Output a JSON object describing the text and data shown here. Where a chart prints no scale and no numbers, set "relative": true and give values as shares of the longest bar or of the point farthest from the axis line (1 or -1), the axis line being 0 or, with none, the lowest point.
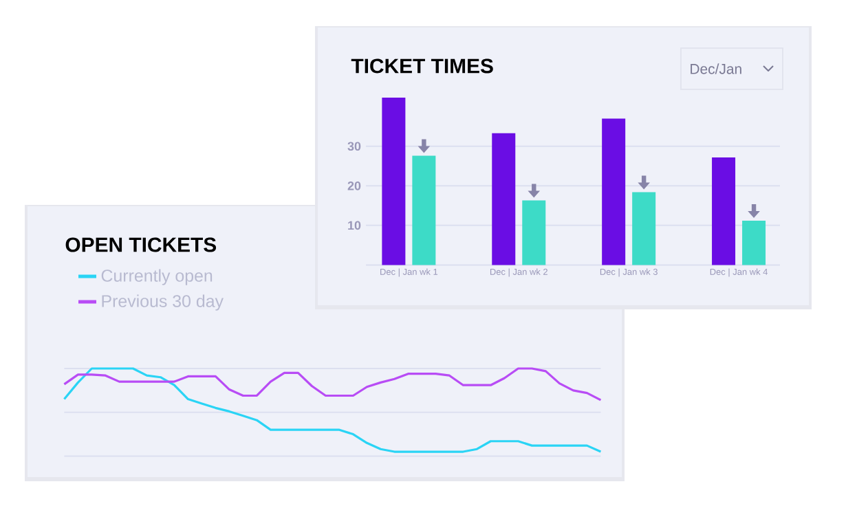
{
  "chart_data": [
    {
      "type": "bar",
      "title": "TICKET TIMES",
      "annotations": [
        "Dec/Jan"
      ],
      "categories": [
        "Dec | Jan wk 1",
        "Dec | Jan wk 2",
        "Dec | Jan wk 3",
        "Dec | Jan wk 4"
      ],
      "series": [
        {
          "color": "#6a0de4",
          "values": [
            42.3,
            33.3,
            37,
            27.2
          ]
        },
        {
          "color": "#3ddbc7",
          "values": [
            27.6,
            16.3,
            18.4,
            11.2
          ]
        }
      ],
      "ylim": [
        0,
        42.3
      ],
      "yticks": [
        10,
        20,
        30
      ],
      "grid": "y"
    },
    {
      "type": "line",
      "title": "OPEN TICKETS",
      "relative": true,
      "legend": "top left",
      "ref_lines": [
        {
          "axis": "y",
          "value": 0.5,
          "color": "#dcdff0"
        },
        {
          "axis": "y",
          "value": 1,
          "color": "#dcdff0"
        }
      ],
      "categories": [
        null,
        null,
        null,
        null,
        null,
        null,
        null,
        null,
        null,
        null,
        null,
        null,
        null,
        null,
        null,
        null,
        null,
        null,
        null,
        null,
        null,
        null,
        null,
        null,
        null,
        null,
        null,
        null,
        null,
        null,
        null,
        null,
        null,
        null,
        null,
        null,
        null,
        null,
        null,
        null
      ],
      "series": [
        {
          "name": "Currently open",
          "color": "#2ad4f5",
          "values": [
            0.65,
            0.84,
            1,
            1,
            1,
            1,
            0.92,
            0.9,
            0.81,
            0.65,
            0.6,
            0.55,
            0.51,
            0.46,
            0.41,
            0.3,
            0.3,
            0.3,
            0.3,
            0.3,
            0.3,
            0.25,
            0.15,
            0.08,
            0.05,
            0.05,
            0.05,
            0.05,
            0.05,
            0.05,
            0.08,
            0.17,
            0.17,
            0.17,
            0.12,
            0.12,
            0.12,
            0.12,
            0.12,
            0.05
          ]
        },
        {
          "name": "Previous 30 day",
          "color": "#b84cf5",
          "values": [
            0.82,
            0.93,
            0.93,
            0.92,
            0.85,
            0.85,
            0.85,
            0.85,
            0.85,
            0.91,
            0.91,
            0.91,
            0.76,
            0.69,
            0.69,
            0.85,
            0.95,
            0.95,
            0.8,
            0.69,
            0.69,
            0.69,
            0.79,
            0.84,
            0.88,
            0.94,
            0.94,
            0.94,
            0.92,
            0.81,
            0.81,
            0.81,
            0.89,
            1.0,
            1.0,
            0.97,
            0.83,
            0.75,
            0.72,
            0.64
          ]
        }
      ]
    }
  ]
}
